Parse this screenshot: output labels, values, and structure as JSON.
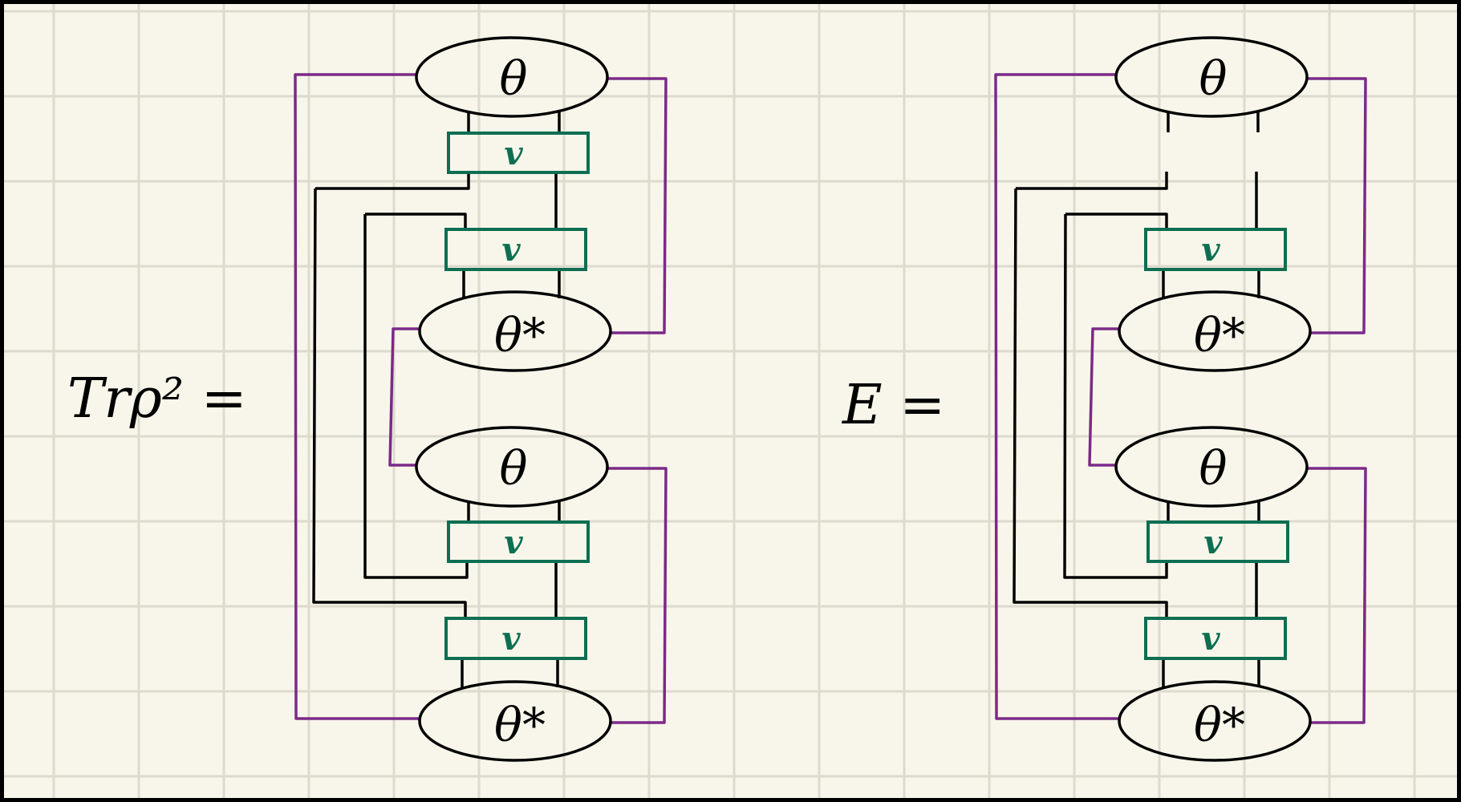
{
  "colors": {
    "paper": "#f8f6ea",
    "grid": "#dcdbcd",
    "border": "#000000",
    "ink": "#000000",
    "tensor_box": "#0e6e52",
    "trace_wire": "#7b2a88"
  },
  "left_equation": {
    "label": "Trρ² =",
    "theta_top_1": "θ",
    "v_box_1": "v",
    "v_box_2": "v",
    "theta_star_1": "θ*",
    "theta_top_2": "θ",
    "v_box_3": "v",
    "v_box_4": "v",
    "theta_star_2": "θ*"
  },
  "right_equation": {
    "label": "E =",
    "theta_top_1": "θ",
    "v_box_2": "v",
    "theta_star_1": "θ*",
    "theta_top_2": "θ",
    "v_box_3": "v",
    "v_box_4": "v",
    "theta_star_2": "θ*"
  }
}
